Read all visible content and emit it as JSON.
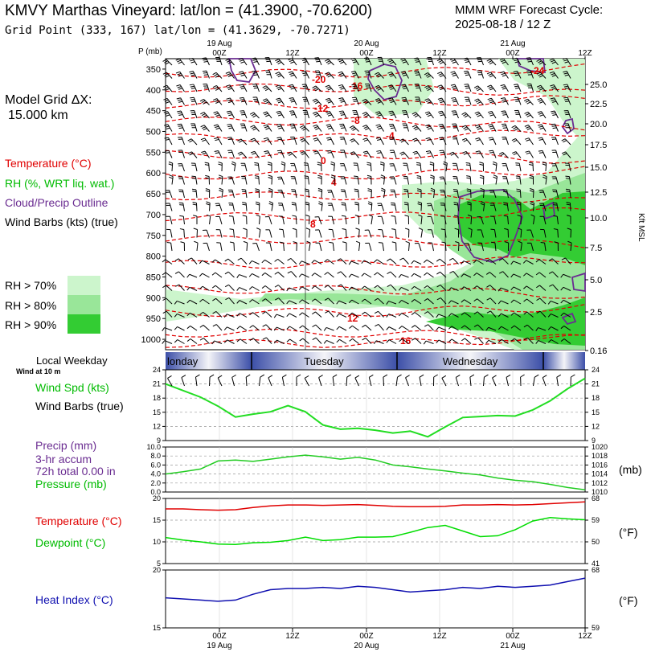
{
  "header": {
    "title": "KMVY Marthas Vineyard:  lat/lon = (41.3900, -70.6200)",
    "grid_point": "Grid Point (333, 167) lat/lon = (41.3629, -70.7271)",
    "cycle_line1": "MMM WRF Forecast Cycle:",
    "cycle_line2": "2025-08-18 / 12  Z",
    "model_grid_line1": "Model Grid ΔX:",
    "model_grid_line2": "15.000 km"
  },
  "legend": {
    "temperature": "Temperature (°C)",
    "rh": "RH (%, WRT liq. wat.)",
    "cloud": "Cloud/Precip Outline",
    "wind": "Wind Barbs (kts) (true)",
    "rh70": "RH > 70%",
    "rh80": "RH > 80%",
    "rh90": "RH > 90%",
    "rh70_color": "#ccf5cc",
    "rh80_color": "#99e699",
    "rh90_color": "#33cc33"
  },
  "time_axis": {
    "top_dates": [
      "19 Aug",
      "20 Aug",
      "21 Aug"
    ],
    "ticks": [
      "00Z",
      "12Z",
      "00Z",
      "12Z",
      "00Z",
      "12Z"
    ],
    "bottom_dates": [
      "19 Aug",
      "20 Aug",
      "21 Aug"
    ]
  },
  "weekday_bar": {
    "label": "Local Weekday",
    "days": [
      "Monday",
      "Tuesday",
      "Wednesday"
    ],
    "monday_shown": "londay"
  },
  "labels": {
    "wind_at": "Wind at 10 m",
    "wind_spd": "Wind Spd (kts)",
    "wind_barbs": "Wind Barbs (true)",
    "precip": "Precip (mm)",
    "accum": "3-hr accum",
    "total": "72h total 0.00 in",
    "pressure": "Pressure (mb)",
    "pressure_unit": "(mb)",
    "temperature": "Temperature (°C)",
    "dewpoint": "Dewpoint (°C)",
    "tempF": "(°F)",
    "heat_index": "Heat Index (°C)",
    "heatF": "(°F)",
    "p_unit": "P (mb)",
    "kft": "Kft MSL"
  },
  "colors": {
    "temperature": "#e00000",
    "dewpoint": "#00dd00",
    "wind": "#22dd22",
    "pressure": "#22cc22",
    "heat_index": "#1010b0",
    "cloud_outline": "#6a2c91",
    "weekday_blue": "#3c4fa8"
  },
  "chart_data": [
    {
      "type": "heatmap",
      "title": "Vertical cross-section",
      "ylabel": "P (mb)",
      "y_ticks_left": [
        350,
        400,
        450,
        500,
        550,
        600,
        650,
        700,
        750,
        800,
        850,
        900,
        950,
        1000
      ],
      "y_ticks_right": [
        "25.0",
        "22.5",
        "20.0",
        "17.5",
        "15.0",
        "12.5",
        "10.0",
        "7.5",
        "5.0",
        "2.5",
        "0.16"
      ],
      "ylabel_right": "Kft MSL",
      "temperature_contour_labels": [
        "-24",
        "-20",
        "-16",
        "-12",
        "-8",
        "-4",
        "0",
        "4",
        "8",
        "12",
        "16"
      ]
    },
    {
      "type": "line",
      "title": "Wind Spd (kts)",
      "ylim": [
        9,
        24
      ],
      "y_ticks": [
        9,
        12,
        15,
        18,
        21,
        24
      ],
      "x_hours": [
        0,
        3,
        6,
        9,
        12,
        15,
        18,
        21,
        24,
        27,
        30,
        33,
        36,
        39,
        42,
        45,
        48,
        51,
        54,
        57,
        60,
        63,
        66,
        69,
        72
      ],
      "series": [
        {
          "name": "Wind Spd (kts)",
          "values": [
            21,
            19.6,
            18.2,
            16.3,
            14.0,
            14.6,
            15.1,
            16.4,
            15.1,
            12.3,
            11.4,
            11.6,
            11.2,
            10.6,
            11.0,
            9.8,
            11.9,
            13.9,
            14.1,
            14.3,
            14.2,
            15.5,
            17.4,
            20.0,
            22.2
          ]
        }
      ]
    },
    {
      "type": "line",
      "title": "Pressure (mb)",
      "ylim": [
        1010,
        1020
      ],
      "y_ticks_left": [
        "0.0",
        "2.0",
        "4.0",
        "6.0",
        "8.0",
        "10.0"
      ],
      "y_ticks_right": [
        1010,
        1012,
        1014,
        1016,
        1018,
        1020
      ],
      "series": [
        {
          "name": "Pressure (mb)",
          "values": [
            1014.0,
            1014.5,
            1015.1,
            1016.9,
            1017.1,
            1016.8,
            1017.3,
            1017.8,
            1018.2,
            1017.8,
            1017.3,
            1017.7,
            1017.1,
            1016.0,
            1015.6,
            1015.1,
            1014.7,
            1014.2,
            1013.8,
            1013.1,
            1012.6,
            1012.3,
            1011.7,
            1011.0,
            1010.5
          ]
        }
      ]
    },
    {
      "type": "line",
      "title": "Temperature / Dewpoint (°C)",
      "ylim": [
        5,
        20
      ],
      "y_ticks": [
        5,
        10,
        15,
        20
      ],
      "y_ticks_right": [
        41,
        50,
        59,
        68
      ],
      "series": [
        {
          "name": "Temperature (°C)",
          "values": [
            17.6,
            17.6,
            17.4,
            17.3,
            17.4,
            17.9,
            18.3,
            18.5,
            18.5,
            18.4,
            18.5,
            18.6,
            18.4,
            18.2,
            18.1,
            18.1,
            18.2,
            18.5,
            18.5,
            18.6,
            18.5,
            18.6,
            18.8,
            19.0,
            19.2
          ]
        },
        {
          "name": "Dewpoint (°C)",
          "values": [
            11.0,
            10.4,
            10.0,
            9.5,
            9.4,
            9.8,
            9.9,
            10.3,
            11.1,
            10.3,
            10.5,
            11.1,
            11.1,
            11.2,
            12.2,
            13.3,
            13.8,
            12.5,
            11.2,
            11.4,
            12.8,
            14.8,
            15.6,
            15.3,
            15.1
          ]
        }
      ]
    },
    {
      "type": "line",
      "title": "Heat Index (°C)",
      "ylim": [
        15,
        20
      ],
      "y_ticks": [
        15,
        20
      ],
      "y_ticks_right": [
        59,
        68
      ],
      "series": [
        {
          "name": "Heat Index (°C)",
          "values": [
            17.6,
            17.5,
            17.4,
            17.3,
            17.4,
            17.9,
            18.3,
            18.4,
            18.4,
            18.5,
            18.4,
            18.6,
            18.5,
            18.3,
            18.1,
            18.2,
            18.3,
            18.5,
            18.4,
            18.6,
            18.5,
            18.6,
            18.7,
            19.0,
            19.3
          ]
        }
      ]
    }
  ]
}
